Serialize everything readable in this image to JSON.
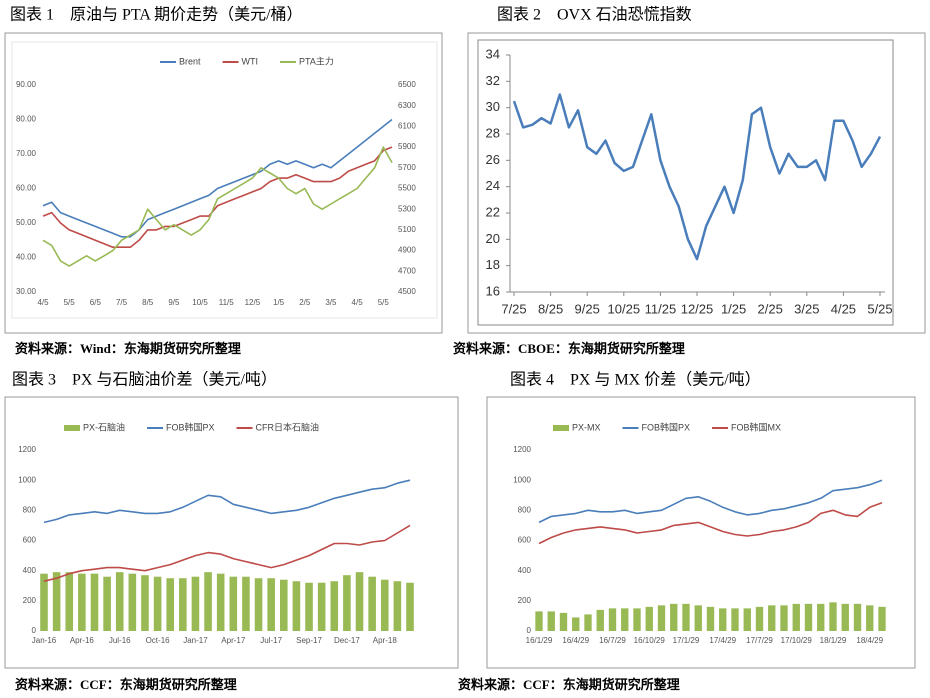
{
  "chart_data": [
    {
      "type": "line",
      "title": "图表 1　原油与 PTA 期价走势（美元/桶）",
      "source": "资料来源：Wind：东海期货研究所整理",
      "legend": "top",
      "categories": [
        "4/5",
        null,
        null,
        "5/5",
        null,
        null,
        "6/5",
        null,
        null,
        "7/5",
        null,
        null,
        "8/5",
        null,
        null,
        "9/5",
        null,
        null,
        "10/5",
        null,
        null,
        "11/5",
        null,
        null,
        "12/5",
        null,
        null,
        "1/5",
        null,
        null,
        "2/5",
        null,
        null,
        "3/5",
        null,
        null,
        "4/5",
        null,
        null,
        "5/5",
        null
      ],
      "series": [
        {
          "name": "Brent",
          "color": "#4a7ebb",
          "values": [
            55,
            56,
            53,
            52,
            51,
            50,
            49,
            48,
            47,
            46,
            46,
            48,
            51,
            52,
            53,
            54,
            55,
            56,
            57,
            58,
            60,
            61,
            62,
            63,
            64,
            65,
            67,
            68,
            67,
            68,
            67,
            66,
            67,
            66,
            68,
            70,
            72,
            74,
            76,
            78,
            80
          ]
        },
        {
          "name": "WTI",
          "color": "#be4b48",
          "values": [
            52,
            53,
            50,
            48,
            47,
            46,
            45,
            44,
            43,
            43,
            43,
            45,
            48,
            48,
            49,
            49,
            50,
            51,
            52,
            52,
            55,
            56,
            57,
            58,
            59,
            60,
            62,
            63,
            63,
            64,
            63,
            62,
            62,
            62,
            63,
            65,
            66,
            67,
            68,
            71,
            72
          ]
        },
        {
          "name": "PTA主力",
          "color": "#98b954",
          "axis": "y2",
          "values": [
            5000,
            4950,
            4800,
            4750,
            4800,
            4850,
            4800,
            4850,
            4900,
            5000,
            5050,
            5100,
            5300,
            5200,
            5100,
            5150,
            5100,
            5050,
            5100,
            5200,
            5400,
            5450,
            5500,
            5550,
            5600,
            5700,
            5650,
            5600,
            5500,
            5450,
            5500,
            5350,
            5300,
            5350,
            5400,
            5450,
            5500,
            5600,
            5700,
            5900,
            5750
          ]
        }
      ],
      "ylim": [
        30,
        90
      ],
      "yticks": [
        {
          "value": 30,
          "label": "30.00"
        },
        {
          "value": 40,
          "label": "40.00"
        },
        {
          "value": 50,
          "label": "50.00"
        },
        {
          "value": 60,
          "label": "60.00"
        },
        {
          "value": 70,
          "label": "70.00"
        },
        {
          "value": 80,
          "label": "80.00"
        },
        {
          "value": 90,
          "label": "90.00"
        }
      ],
      "y2lim": [
        4500,
        6500
      ],
      "y2ticks": [
        4500,
        4700,
        4900,
        5100,
        5300,
        5500,
        5700,
        5900,
        6100,
        6300,
        6500
      ],
      "grid": false
    },
    {
      "type": "line",
      "title": "图表 2　OVX 石油恐慌指数",
      "source": "资料来源：CBOE：东海期货研究所整理",
      "categories": [
        "7/25",
        null,
        null,
        null,
        "8/25",
        null,
        null,
        null,
        "9/25",
        null,
        null,
        null,
        "10/25",
        null,
        null,
        null,
        "11/25",
        null,
        null,
        null,
        "12/25",
        null,
        null,
        null,
        "1/25",
        null,
        null,
        null,
        "2/25",
        null,
        null,
        null,
        "3/25",
        null,
        null,
        null,
        "4/25",
        null,
        null,
        null,
        "5/25"
      ],
      "series": [
        {
          "color": "#4a7ebb",
          "values": [
            30.5,
            28.5,
            28.7,
            29.2,
            28.8,
            31.0,
            28.5,
            29.8,
            27.0,
            26.5,
            27.5,
            25.8,
            25.2,
            25.5,
            27.5,
            29.5,
            26.0,
            24.0,
            22.5,
            20.0,
            18.5,
            21.0,
            22.5,
            24.0,
            22.0,
            24.5,
            29.5,
            30.0,
            27.0,
            25.0,
            26.5,
            25.5,
            25.5,
            26.0,
            24.5,
            29.0,
            29.0,
            27.5,
            25.5,
            26.5,
            27.8
          ]
        }
      ],
      "ylim": [
        16,
        34
      ],
      "yticks": [
        16,
        18,
        20,
        22,
        24,
        26,
        28,
        30,
        32,
        34
      ],
      "grid": false
    },
    {
      "type": "line",
      "title": "图表 3　PX 与石脑油价差（美元/吨）",
      "source": "资料来源：CCF：东海期货研究所整理",
      "legend": "top",
      "categories": [
        "Jan-16",
        null,
        null,
        "Apr-16",
        null,
        null,
        "Jul-16",
        null,
        null,
        "Oct-16",
        null,
        null,
        "Jan-17",
        null,
        null,
        "Apr-17",
        null,
        null,
        "Jul-17",
        null,
        null,
        "Sep-17",
        null,
        null,
        "Dec-17",
        null,
        null,
        "Apr-18",
        null,
        null
      ],
      "series": [
        {
          "name": "PX-石脑油",
          "color": "#98b954",
          "type": "bar",
          "values": [
            380,
            390,
            390,
            380,
            380,
            360,
            390,
            380,
            370,
            360,
            350,
            350,
            360,
            390,
            380,
            360,
            360,
            350,
            350,
            340,
            330,
            320,
            320,
            330,
            370,
            390,
            360,
            340,
            330,
            320
          ]
        },
        {
          "name": "FOB韩国PX",
          "color": "#4a7ebb",
          "values": [
            720,
            740,
            770,
            780,
            790,
            780,
            800,
            790,
            780,
            780,
            790,
            820,
            860,
            900,
            890,
            840,
            820,
            800,
            780,
            790,
            800,
            820,
            850,
            880,
            900,
            920,
            940,
            950,
            980,
            1000
          ]
        },
        {
          "name": "CFR日本石脑油",
          "color": "#be4b48",
          "values": [
            330,
            350,
            380,
            400,
            410,
            420,
            420,
            410,
            400,
            420,
            440,
            470,
            500,
            520,
            510,
            480,
            460,
            440,
            420,
            440,
            470,
            500,
            540,
            580,
            580,
            570,
            590,
            600,
            650,
            700
          ]
        }
      ],
      "ylim": [
        0,
        1200
      ],
      "yticks": [
        0,
        200,
        400,
        600,
        800,
        1000,
        1200
      ],
      "grid": false
    },
    {
      "type": "line",
      "title": "图表 4　PX 与 MX 价差（美元/吨）",
      "source": "资料来源：CCF：东海期货研究所整理",
      "legend": "top",
      "categories": [
        "16/1/29",
        null,
        null,
        "16/4/29",
        null,
        null,
        "16/7/29",
        null,
        null,
        "16/10/29",
        null,
        null,
        "17/1/29",
        null,
        null,
        "17/4/29",
        null,
        null,
        "17/7/29",
        null,
        null,
        "17/10/29",
        null,
        null,
        "18/1/29",
        null,
        null,
        "18/4/29",
        null
      ],
      "series": [
        {
          "name": "PX-MX",
          "color": "#98b954",
          "type": "bar",
          "values": [
            130,
            130,
            120,
            90,
            110,
            140,
            150,
            150,
            150,
            160,
            170,
            180,
            180,
            170,
            160,
            150,
            150,
            150,
            160,
            170,
            170,
            180,
            180,
            180,
            190,
            180,
            180,
            170,
            160
          ]
        },
        {
          "name": "FOB韩国PX",
          "color": "#4a7ebb",
          "values": [
            720,
            760,
            770,
            780,
            800,
            790,
            790,
            800,
            780,
            790,
            800,
            840,
            880,
            890,
            860,
            820,
            790,
            770,
            780,
            800,
            810,
            830,
            850,
            880,
            930,
            940,
            950,
            970,
            1000
          ]
        },
        {
          "name": "FOB韩国MX",
          "color": "#be4b48",
          "values": [
            580,
            620,
            650,
            670,
            680,
            690,
            680,
            670,
            650,
            660,
            670,
            700,
            710,
            720,
            690,
            660,
            640,
            630,
            640,
            660,
            670,
            690,
            720,
            780,
            800,
            770,
            760,
            820,
            850
          ]
        }
      ],
      "ylim": [
        0,
        1200
      ],
      "yticks": [
        0,
        200,
        400,
        600,
        800,
        1000,
        1200
      ],
      "grid": false
    }
  ]
}
